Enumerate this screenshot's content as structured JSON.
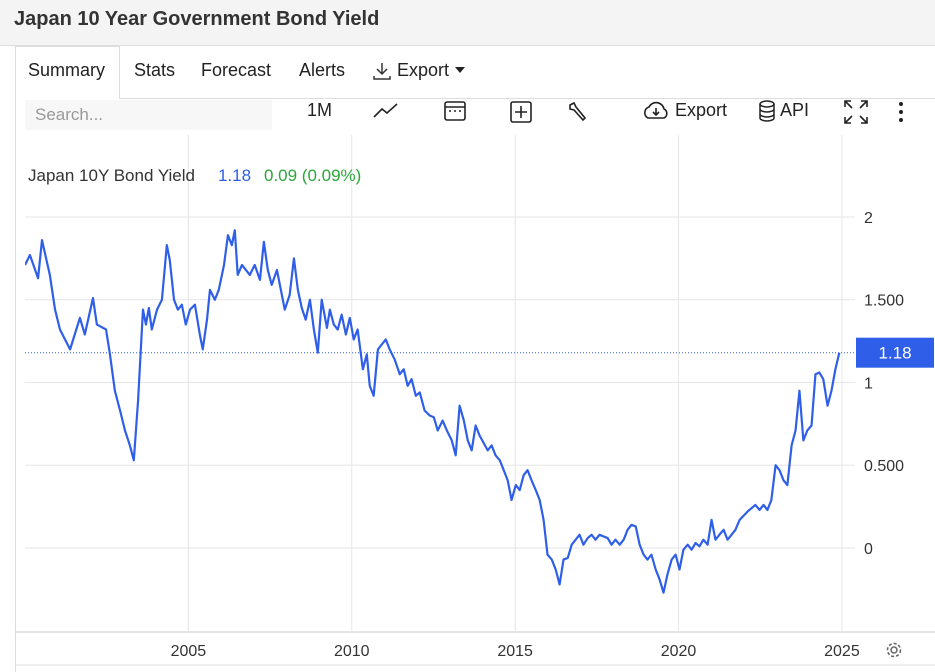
{
  "header": {
    "title": "Japan 10 Year Government Bond Yield"
  },
  "tabs": [
    "Summary",
    "Stats",
    "Forecast",
    "Alerts",
    "Export"
  ],
  "toolbar": {
    "search_placeholder": "Search...",
    "period": "1M",
    "export": "Export",
    "api": "API"
  },
  "chart_data": {
    "type": "line",
    "change": "0.09 (0.09%)",
    "last_value": 1.18,
    "grid": true,
    "xlim": [
      2000,
      2025.4
    ],
    "ylim": [
      -0.5,
      2.45
    ],
    "xticks": [
      2005,
      2010,
      2015,
      2020,
      2025
    ],
    "yticks": [
      2,
      {
        "value": 1.5,
        "label": "1.500"
      },
      1,
      {
        "value": 0.5,
        "label": "0.500"
      },
      0
    ],
    "x": [
      2000.0,
      2000.15,
      2000.4,
      2000.52,
      2000.76,
      2000.92,
      2001.07,
      2001.38,
      2001.68,
      2001.83,
      2002.08,
      2002.2,
      2002.48,
      2002.6,
      2002.75,
      2002.91,
      2003.06,
      2003.21,
      2003.33,
      2003.46,
      2003.61,
      2003.7,
      2003.79,
      2003.88,
      2004.04,
      2004.19,
      2004.34,
      2004.43,
      2004.56,
      2004.68,
      2004.8,
      2004.92,
      2005.05,
      2005.2,
      2005.35,
      2005.44,
      2005.57,
      2005.66,
      2005.81,
      2005.93,
      2006.09,
      2006.21,
      2006.33,
      2006.42,
      2006.51,
      2006.64,
      2006.88,
      2007.03,
      2007.19,
      2007.31,
      2007.43,
      2007.55,
      2007.71,
      2007.83,
      2007.95,
      2008.1,
      2008.23,
      2008.35,
      2008.47,
      2008.59,
      2008.72,
      2008.84,
      2008.96,
      2009.08,
      2009.24,
      2009.33,
      2009.45,
      2009.57,
      2009.69,
      2009.82,
      2009.94,
      2010.06,
      2010.18,
      2010.34,
      2010.46,
      2010.55,
      2010.67,
      2010.8,
      2011.04,
      2011.16,
      2011.31,
      2011.47,
      2011.59,
      2011.71,
      2011.83,
      2011.96,
      2012.08,
      2012.23,
      2012.39,
      2012.51,
      2012.63,
      2012.78,
      2012.91,
      2013.06,
      2013.18,
      2013.3,
      2013.43,
      2013.55,
      2013.67,
      2013.79,
      2013.91,
      2014.16,
      2014.28,
      2014.4,
      2014.53,
      2014.65,
      2014.77,
      2014.89,
      2015.02,
      2015.14,
      2015.26,
      2015.38,
      2015.5,
      2015.63,
      2015.75,
      2015.87,
      2015.99,
      2016.12,
      2016.24,
      2016.36,
      2016.48,
      2016.61,
      2016.73,
      2016.85,
      2016.97,
      2017.09,
      2017.22,
      2017.34,
      2017.46,
      2017.58,
      2017.83,
      2017.95,
      2018.07,
      2018.2,
      2018.32,
      2018.44,
      2018.56,
      2018.69,
      2018.81,
      2018.93,
      2019.05,
      2019.17,
      2019.3,
      2019.42,
      2019.54,
      2019.66,
      2019.79,
      2019.91,
      2020.03,
      2020.15,
      2020.28,
      2020.4,
      2020.52,
      2020.64,
      2020.76,
      2020.89,
      2021.01,
      2021.13,
      2021.25,
      2021.38,
      2021.5,
      2021.62,
      2021.74,
      2021.87,
      2022.11,
      2022.35,
      2022.48,
      2022.6,
      2022.72,
      2022.84,
      2022.97,
      2023.09,
      2023.21,
      2023.33,
      2023.46,
      2023.58,
      2023.7,
      2023.82,
      2023.94,
      2024.07,
      2024.19,
      2024.31,
      2024.43,
      2024.56,
      2024.68,
      2024.8,
      2024.92
    ],
    "series": [
      {
        "name": "Japan 10Y Bond Yield",
        "color": "#2f5fe8",
        "values": [
          1.71,
          1.77,
          1.63,
          1.86,
          1.65,
          1.44,
          1.32,
          1.2,
          1.39,
          1.29,
          1.51,
          1.35,
          1.32,
          1.17,
          0.95,
          0.83,
          0.71,
          0.62,
          0.53,
          0.89,
          1.44,
          1.35,
          1.45,
          1.32,
          1.44,
          1.5,
          1.83,
          1.74,
          1.5,
          1.44,
          1.47,
          1.35,
          1.44,
          1.47,
          1.29,
          1.2,
          1.38,
          1.56,
          1.5,
          1.56,
          1.71,
          1.89,
          1.83,
          1.92,
          1.65,
          1.71,
          1.65,
          1.71,
          1.62,
          1.85,
          1.68,
          1.59,
          1.68,
          1.56,
          1.44,
          1.53,
          1.75,
          1.56,
          1.45,
          1.38,
          1.5,
          1.32,
          1.18,
          1.5,
          1.33,
          1.44,
          1.35,
          1.32,
          1.41,
          1.29,
          1.39,
          1.26,
          1.32,
          1.08,
          1.17,
          0.98,
          0.92,
          1.2,
          1.26,
          1.2,
          1.14,
          1.05,
          1.08,
          0.98,
          1.02,
          0.92,
          0.94,
          0.83,
          0.8,
          0.79,
          0.71,
          0.77,
          0.71,
          0.65,
          0.56,
          0.86,
          0.77,
          0.65,
          0.59,
          0.74,
          0.68,
          0.59,
          0.62,
          0.56,
          0.53,
          0.47,
          0.41,
          0.29,
          0.38,
          0.35,
          0.44,
          0.47,
          0.41,
          0.35,
          0.29,
          0.17,
          -0.04,
          -0.07,
          -0.13,
          -0.22,
          -0.07,
          -0.06,
          0.02,
          0.05,
          0.08,
          0.02,
          0.06,
          0.08,
          0.05,
          0.08,
          0.06,
          0.02,
          0.05,
          0.02,
          0.05,
          0.11,
          0.14,
          0.13,
          0.02,
          -0.04,
          -0.07,
          -0.04,
          -0.13,
          -0.19,
          -0.27,
          -0.16,
          -0.07,
          -0.04,
          -0.13,
          -0.01,
          0.02,
          -0.01,
          0.03,
          0.01,
          0.05,
          0.02,
          0.17,
          0.05,
          0.08,
          0.11,
          0.05,
          0.08,
          0.11,
          0.17,
          0.22,
          0.26,
          0.23,
          0.26,
          0.23,
          0.29,
          0.5,
          0.47,
          0.41,
          0.38,
          0.62,
          0.71,
          0.95,
          0.65,
          0.71,
          0.74,
          1.05,
          1.06,
          1.02,
          0.86,
          0.95,
          1.08,
          1.18
        ]
      }
    ]
  }
}
